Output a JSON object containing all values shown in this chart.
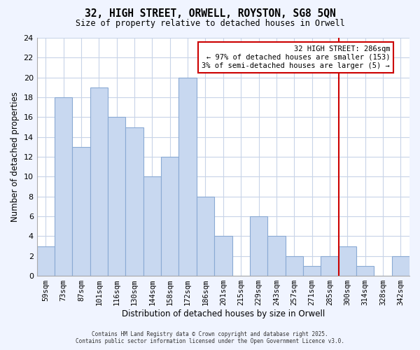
{
  "title": "32, HIGH STREET, ORWELL, ROYSTON, SG8 5QN",
  "subtitle": "Size of property relative to detached houses in Orwell",
  "xlabel": "Distribution of detached houses by size in Orwell",
  "ylabel": "Number of detached properties",
  "footer_lines": [
    "Contains HM Land Registry data © Crown copyright and database right 2025.",
    "Contains public sector information licensed under the Open Government Licence v3.0."
  ],
  "bar_labels": [
    "59sqm",
    "73sqm",
    "87sqm",
    "101sqm",
    "116sqm",
    "130sqm",
    "144sqm",
    "158sqm",
    "172sqm",
    "186sqm",
    "201sqm",
    "215sqm",
    "229sqm",
    "243sqm",
    "257sqm",
    "271sqm",
    "285sqm",
    "300sqm",
    "314sqm",
    "328sqm",
    "342sqm"
  ],
  "bar_heights": [
    3,
    18,
    13,
    19,
    16,
    15,
    10,
    12,
    20,
    8,
    4,
    0,
    6,
    4,
    2,
    1,
    2,
    3,
    1,
    0,
    2
  ],
  "bar_color": "#c8d8f0",
  "bar_edge_color": "#8aaad4",
  "grid_color": "#c8d4e8",
  "background_color": "#f0f4ff",
  "plot_bg_color": "#ffffff",
  "vline_x_index": 16.5,
  "vline_color": "#cc0000",
  "annotation_text": "32 HIGH STREET: 286sqm\n← 97% of detached houses are smaller (153)\n3% of semi-detached houses are larger (5) →",
  "annotation_box_color": "#cc0000",
  "ylim": [
    0,
    24
  ],
  "yticks": [
    0,
    2,
    4,
    6,
    8,
    10,
    12,
    14,
    16,
    18,
    20,
    22,
    24
  ]
}
